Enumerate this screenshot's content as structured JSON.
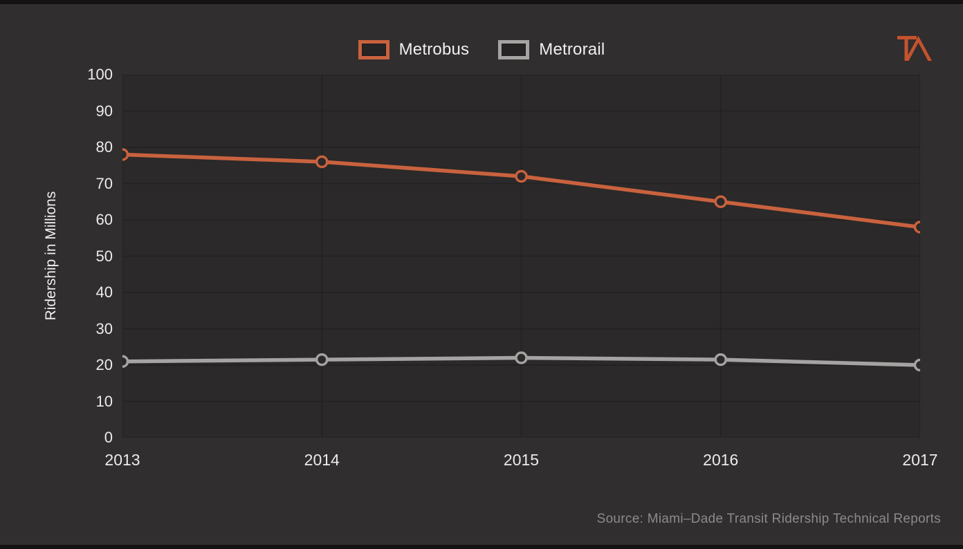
{
  "logo": {
    "name": "TA transit-alliance logo",
    "color": "#c5532e"
  },
  "chart_data": {
    "type": "line",
    "categories": [
      "2013",
      "2014",
      "2015",
      "2016",
      "2017"
    ],
    "series": [
      {
        "name": "Metrobus",
        "color": "#c9623e",
        "values": [
          78,
          76,
          72,
          65,
          58
        ]
      },
      {
        "name": "Metrorail",
        "color": "#a6a3a3",
        "values": [
          21,
          21.5,
          22,
          21.5,
          20
        ]
      }
    ],
    "title": "",
    "xlabel": "",
    "ylabel": "Ridership in Millions",
    "ylim": [
      0,
      100
    ],
    "ytick_step": 10,
    "grid": true,
    "legend_position": "top-center",
    "background": "#302e2e",
    "plot_background": "#2b2929",
    "gridline_color": "#242222",
    "tick_text_color": "#edebea"
  },
  "source": {
    "text": "Source: Miami–Dade Transit Ridership Technical Reports"
  }
}
